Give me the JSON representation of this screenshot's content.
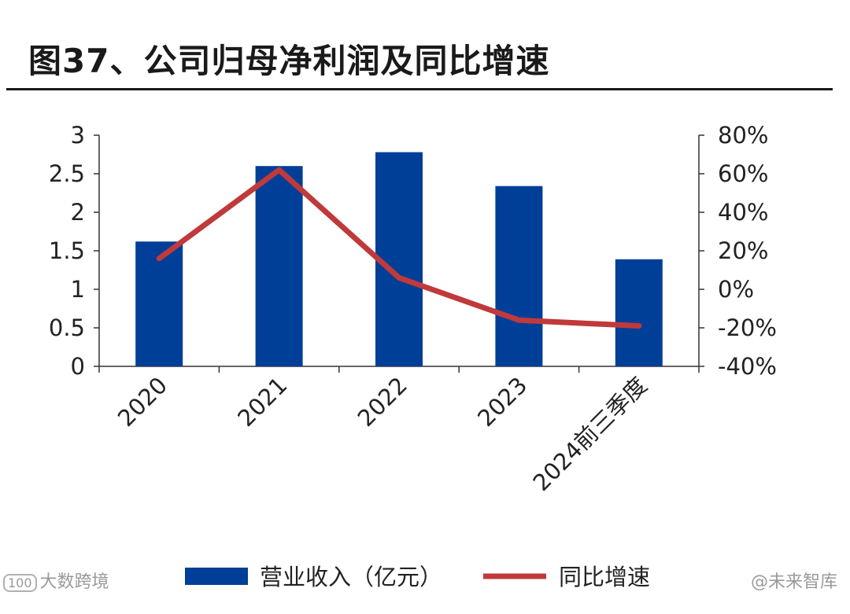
{
  "header": {
    "title": "图37、公司归母净利润及同比增速"
  },
  "chart_data": {
    "type": "bar",
    "categories": [
      "2020",
      "2021",
      "2022",
      "2023",
      "2024前三季度"
    ],
    "series": [
      {
        "name": "营业收入（亿元）",
        "kind": "bar",
        "axis": "left",
        "color": "#003f98",
        "values": [
          1.62,
          2.6,
          2.78,
          2.34,
          1.39
        ]
      },
      {
        "name": "同比增速",
        "kind": "line",
        "axis": "right",
        "color": "#c0393b",
        "values": [
          16,
          62,
          6,
          -16,
          -19
        ]
      }
    ],
    "y_left": {
      "min": 0,
      "max": 3,
      "ticks": [
        "0",
        "0.5",
        "1",
        "1.5",
        "2",
        "2.5",
        "3"
      ],
      "tick_values": [
        0,
        0.5,
        1,
        1.5,
        2,
        2.5,
        3
      ]
    },
    "y_right": {
      "min": -40,
      "max": 80,
      "ticks": [
        "-40%",
        "-20%",
        "0%",
        "20%",
        "40%",
        "60%",
        "80%"
      ],
      "tick_values": [
        -40,
        -20,
        0,
        20,
        40,
        60,
        80
      ]
    },
    "legend": {
      "position": "bottom"
    }
  },
  "watermarks": {
    "left": "大数跨境",
    "left_logo": "100",
    "right": "@未来智库"
  }
}
